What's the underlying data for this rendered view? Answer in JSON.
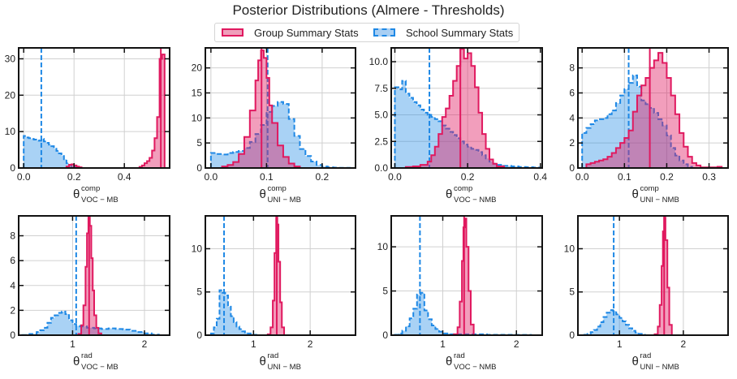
{
  "title": "Posterior Distributions (Almere - Thresholds)",
  "legend": {
    "placement": "top-center",
    "items": [
      {
        "label": "Group Summary Stats",
        "style": "solid",
        "color": "#e0195f",
        "fill": "#ef9fbb"
      },
      {
        "label": "School Summary Stats",
        "style": "dashed",
        "color": "#1e88e5",
        "fill": "#a9cff3"
      }
    ]
  },
  "colors": {
    "group_line": "#e0195f",
    "group_fill": "#e0195f",
    "school_line": "#1e88e5",
    "school_fill": "#1e88e5",
    "grid": "#d0d0d0",
    "frame": "#111111"
  },
  "chart_data": [
    {
      "type": "area",
      "panel": "top-1",
      "xlabel_symbol": "θ",
      "xlabel_sup": "comp",
      "xlabel_sub": "VOC − MB",
      "xlim": [
        -0.02,
        0.58
      ],
      "ylim": [
        0,
        33
      ],
      "xticks": [
        "0.0",
        "0.2",
        "0.4"
      ],
      "xtick_values": [
        0,
        0.2,
        0.4
      ],
      "yticks": [
        "0",
        "10",
        "20",
        "30"
      ],
      "ytick_values": [
        0,
        10,
        20,
        30
      ],
      "grid": true,
      "series": [
        {
          "name": "School Summary Stats",
          "marker_line": 0.07,
          "x": [
            0,
            0.01,
            0.02,
            0.03,
            0.04,
            0.05,
            0.06,
            0.07,
            0.08,
            0.09,
            0.1,
            0.11,
            0.12,
            0.13,
            0.14,
            0.15,
            0.16,
            0.17,
            0.18,
            0.19,
            0.2,
            0.21,
            0.22,
            0.23
          ],
          "y": [
            8.8,
            8.4,
            8.2,
            8.0,
            7.8,
            7.6,
            7.5,
            8.0,
            7.3,
            6.9,
            6.4,
            6.0,
            5.3,
            4.7,
            4.0,
            3.3,
            2.4,
            1.3,
            0.8,
            0.5,
            0.3,
            0.1,
            0.05,
            0
          ]
        },
        {
          "name": "Group Summary Stats",
          "marker_line": 0.545,
          "x": [
            0.17,
            0.18,
            0.19,
            0.2,
            0.21,
            0.22,
            0.23,
            0.46,
            0.47,
            0.48,
            0.49,
            0.5,
            0.51,
            0.52,
            0.53,
            0.54,
            0.55,
            0.56
          ],
          "y": [
            0.4,
            0.9,
            1.0,
            0.7,
            0.4,
            0.2,
            0,
            0.3,
            0.7,
            1.3,
            1.9,
            2.8,
            4.8,
            8.2,
            14.0,
            30.0,
            31.2,
            0
          ]
        }
      ]
    },
    {
      "type": "area",
      "panel": "top-2",
      "xlabel_symbol": "θ",
      "xlabel_sup": "comp",
      "xlabel_sub": "UNI − MB",
      "xlim": [
        -0.01,
        0.26
      ],
      "ylim": [
        0,
        24
      ],
      "xticks": [
        "0.0",
        "0.1",
        "0.2"
      ],
      "xtick_values": [
        0,
        0.1,
        0.2
      ],
      "yticks": [
        "0",
        "5",
        "10",
        "15",
        "20"
      ],
      "ytick_values": [
        0,
        5,
        10,
        15,
        20
      ],
      "grid": true,
      "series": [
        {
          "name": "School Summary Stats",
          "marker_line": 0.102,
          "x": [
            0,
            0.01,
            0.02,
            0.03,
            0.04,
            0.05,
            0.06,
            0.07,
            0.08,
            0.09,
            0.1,
            0.11,
            0.12,
            0.13,
            0.14,
            0.15,
            0.16,
            0.17,
            0.18,
            0.19,
            0.2,
            0.21,
            0.22,
            0.23,
            0.24,
            0.25
          ],
          "y": [
            3.0,
            2.8,
            2.7,
            3.0,
            3.2,
            3.4,
            4.0,
            5.2,
            6.8,
            8.6,
            11.2,
            12.4,
            13.2,
            12.8,
            9.8,
            6.4,
            3.8,
            2.4,
            1.3,
            0.6,
            0.3,
            0.15,
            0.08,
            0.05,
            0.05,
            0
          ]
        },
        {
          "name": "Group Summary Stats",
          "marker_line": 0.091,
          "x": [
            0.02,
            0.03,
            0.04,
            0.05,
            0.06,
            0.07,
            0.08,
            0.085,
            0.09,
            0.095,
            0.1,
            0.105,
            0.11,
            0.12,
            0.13,
            0.14,
            0.15,
            0.16
          ],
          "y": [
            0.3,
            0.6,
            1.2,
            2.8,
            6.2,
            11.5,
            17.5,
            21.5,
            23.5,
            22.0,
            18.0,
            12.5,
            9.0,
            4.5,
            2.2,
            0.9,
            0.3,
            0
          ]
        }
      ]
    },
    {
      "type": "area",
      "panel": "top-3",
      "xlabel_symbol": "θ",
      "xlabel_sup": "comp",
      "xlabel_sub": "VOC − NMB",
      "xlim": [
        -0.01,
        0.405
      ],
      "ylim": [
        0,
        11.3
      ],
      "xticks": [
        "0.0",
        "0.2",
        "0.4"
      ],
      "xtick_values": [
        0,
        0.2,
        0.4
      ],
      "yticks": [
        "0.0",
        "2.5",
        "5.0",
        "7.5",
        "10.0"
      ],
      "ytick_values": [
        0,
        2.5,
        5,
        7.5,
        10
      ],
      "grid": true,
      "series": [
        {
          "name": "School Summary Stats",
          "marker_line": 0.095,
          "x": [
            0,
            0.01,
            0.02,
            0.03,
            0.04,
            0.05,
            0.06,
            0.07,
            0.08,
            0.09,
            0.1,
            0.11,
            0.12,
            0.13,
            0.14,
            0.15,
            0.16,
            0.17,
            0.18,
            0.19,
            0.2,
            0.21,
            0.22,
            0.23,
            0.24,
            0.25,
            0.26,
            0.27,
            0.28,
            0.3,
            0.32,
            0.34,
            0.36,
            0.38,
            0.4
          ],
          "y": [
            7.6,
            7.4,
            8.2,
            7.0,
            6.6,
            6.2,
            5.9,
            5.5,
            5.2,
            5.0,
            4.8,
            4.6,
            4.4,
            4.0,
            3.7,
            3.4,
            3.1,
            2.8,
            2.5,
            2.2,
            2.0,
            1.8,
            1.7,
            1.5,
            1.2,
            0.9,
            0.6,
            0.4,
            0.3,
            0.2,
            0.15,
            0.1,
            0.08,
            0.05,
            0
          ]
        },
        {
          "name": "Group Summary Stats",
          "marker_line": 0.18,
          "x": [
            0.03,
            0.05,
            0.07,
            0.09,
            0.1,
            0.11,
            0.12,
            0.13,
            0.14,
            0.15,
            0.16,
            0.17,
            0.18,
            0.19,
            0.2,
            0.21,
            0.22,
            0.23,
            0.24,
            0.25,
            0.26,
            0.27,
            0.28,
            0.3
          ],
          "y": [
            0.1,
            0.15,
            0.3,
            0.6,
            1.2,
            2.0,
            3.2,
            4.8,
            5.6,
            6.8,
            8.2,
            9.6,
            11.2,
            10.3,
            10.8,
            9.6,
            7.6,
            5.2,
            3.2,
            1.8,
            0.8,
            0.4,
            0.15,
            0
          ]
        }
      ]
    },
    {
      "type": "area",
      "panel": "top-4",
      "xlabel_symbol": "θ",
      "xlabel_sup": "comp",
      "xlabel_sub": "UNI − NMB",
      "xlim": [
        -0.01,
        0.345
      ],
      "ylim": [
        0,
        9.6
      ],
      "xticks": [
        "0.0",
        "0.1",
        "0.2",
        "0.3"
      ],
      "xtick_values": [
        0,
        0.1,
        0.2,
        0.3
      ],
      "yticks": [
        "0",
        "2",
        "4",
        "6",
        "8"
      ],
      "ytick_values": [
        0,
        2,
        4,
        6,
        8
      ],
      "grid": true,
      "series": [
        {
          "name": "School Summary Stats",
          "marker_line": 0.11,
          "x": [
            0,
            0.01,
            0.02,
            0.03,
            0.04,
            0.05,
            0.06,
            0.07,
            0.08,
            0.09,
            0.1,
            0.11,
            0.12,
            0.13,
            0.14,
            0.15,
            0.16,
            0.17,
            0.18,
            0.19,
            0.2,
            0.21,
            0.22,
            0.23,
            0.24,
            0.25,
            0.26
          ],
          "y": [
            2.8,
            3.2,
            3.5,
            3.8,
            3.9,
            4.0,
            4.3,
            4.6,
            5.2,
            5.8,
            6.3,
            6.8,
            7.4,
            6.5,
            5.4,
            5.1,
            4.8,
            4.4,
            3.9,
            3.4,
            2.6,
            1.6,
            1.0,
            0.6,
            0.3,
            0.1,
            0
          ]
        },
        {
          "name": "Group Summary Stats",
          "marker_line": 0.16,
          "x": [
            0.01,
            0.02,
            0.03,
            0.04,
            0.05,
            0.06,
            0.07,
            0.08,
            0.09,
            0.1,
            0.11,
            0.12,
            0.13,
            0.14,
            0.15,
            0.16,
            0.17,
            0.18,
            0.19,
            0.2,
            0.21,
            0.22,
            0.23,
            0.24,
            0.25,
            0.26,
            0.27,
            0.28,
            0.32,
            0.33
          ],
          "y": [
            0.3,
            0.4,
            0.5,
            0.6,
            0.7,
            0.9,
            1.2,
            1.6,
            2.0,
            2.4,
            3.0,
            4.5,
            5.8,
            6.6,
            7.2,
            8.0,
            8.6,
            9.2,
            8.4,
            7.2,
            5.8,
            4.3,
            2.8,
            1.7,
            0.9,
            0.4,
            0.2,
            0.05,
            0.1,
            0
          ]
        }
      ]
    },
    {
      "type": "area",
      "panel": "bottom-1",
      "xlabel_symbol": "θ",
      "xlabel_sup": "rad",
      "xlabel_sub": "VOC − MB",
      "xlim": [
        0.25,
        2.35
      ],
      "ylim": [
        0,
        9.6
      ],
      "xticks": [
        "1",
        "2"
      ],
      "xtick_values": [
        1,
        2
      ],
      "yticks": [
        "0",
        "2",
        "4",
        "6",
        "8"
      ],
      "ytick_values": [
        0,
        2,
        4,
        6,
        8
      ],
      "grid": true,
      "series": [
        {
          "name": "School Summary Stats",
          "marker_line": 1.05,
          "x": [
            0.3,
            0.4,
            0.5,
            0.55,
            0.6,
            0.65,
            0.7,
            0.75,
            0.8,
            0.85,
            0.9,
            0.95,
            1.0,
            1.05,
            1.1,
            1.2,
            1.3,
            1.4,
            1.5,
            1.6,
            1.7,
            1.8,
            1.9,
            2.0,
            2.1,
            2.2
          ],
          "y": [
            0.02,
            0.1,
            0.25,
            0.4,
            0.6,
            1.0,
            1.4,
            1.6,
            1.8,
            1.9,
            1.7,
            1.2,
            0.9,
            0.75,
            0.7,
            0.6,
            0.55,
            0.5,
            0.55,
            0.5,
            0.45,
            0.35,
            0.25,
            0.15,
            0.05,
            0
          ]
        },
        {
          "name": "Group Summary Stats",
          "marker_line": 1.23,
          "x": [
            1.08,
            1.12,
            1.15,
            1.18,
            1.2,
            1.22,
            1.24,
            1.26,
            1.28,
            1.3,
            1.33,
            1.36,
            1.4
          ],
          "y": [
            0.1,
            0.8,
            2.4,
            5.5,
            8.2,
            9.5,
            8.8,
            6.2,
            3.6,
            1.6,
            0.6,
            0.15,
            0
          ]
        }
      ]
    },
    {
      "type": "area",
      "panel": "bottom-2",
      "xlabel_symbol": "θ",
      "xlabel_sup": "rad",
      "xlabel_sub": "UNI − MB",
      "xlim": [
        0.15,
        2.8
      ],
      "ylim": [
        0,
        13.8
      ],
      "xticks": [
        "1",
        "2"
      ],
      "xtick_values": [
        1,
        2
      ],
      "yticks": [
        "0",
        "5",
        "10"
      ],
      "ytick_values": [
        0,
        5,
        10
      ],
      "grid": true,
      "series": [
        {
          "name": "School Summary Stats",
          "marker_line": 0.48,
          "x": [
            0.25,
            0.3,
            0.35,
            0.4,
            0.45,
            0.5,
            0.55,
            0.6,
            0.65,
            0.7,
            0.75,
            0.8,
            0.85,
            0.9,
            0.95,
            1.0,
            1.05
          ],
          "y": [
            0.2,
            0.9,
            1.9,
            5.2,
            4.9,
            4.6,
            3.3,
            2.2,
            1.5,
            1.0,
            0.7,
            0.45,
            0.3,
            0.2,
            0.15,
            0.05,
            0
          ]
        },
        {
          "name": "Group Summary Stats",
          "marker_line": 1.41,
          "x": [
            1.25,
            1.3,
            1.34,
            1.37,
            1.4,
            1.42,
            1.44,
            1.47,
            1.5,
            1.54
          ],
          "y": [
            0.1,
            0.9,
            4.0,
            9.5,
            13.6,
            12.8,
            8.5,
            3.8,
            0.9,
            0
          ]
        }
      ]
    },
    {
      "type": "area",
      "panel": "bottom-3",
      "xlabel_symbol": "θ",
      "xlabel_sup": "rad",
      "xlabel_sub": "VOC − NMB",
      "xlim": [
        0.3,
        2.35
      ],
      "ylim": [
        0,
        13.5
      ],
      "xticks": [
        "1",
        "2"
      ],
      "xtick_values": [
        1,
        2
      ],
      "yticks": [
        "0",
        "5",
        "10"
      ],
      "ytick_values": [
        0,
        5,
        10
      ],
      "grid": true,
      "series": [
        {
          "name": "School Summary Stats",
          "marker_line": 0.69,
          "x": [
            0.35,
            0.4,
            0.45,
            0.5,
            0.55,
            0.6,
            0.65,
            0.7,
            0.75,
            0.8,
            0.85,
            0.9,
            0.95,
            1.0,
            1.1,
            1.2,
            1.4,
            1.6,
            1.8,
            2.0,
            2.2
          ],
          "y": [
            0.05,
            0.2,
            0.5,
            1.0,
            1.9,
            3.0,
            4.6,
            4.8,
            2.8,
            1.8,
            1.1,
            0.7,
            0.4,
            0.2,
            0.1,
            0.1,
            0.1,
            0.05,
            0.05,
            0.03,
            0
          ]
        },
        {
          "name": "Group Summary Stats",
          "marker_line": 1.29,
          "x": [
            1.15,
            1.2,
            1.23,
            1.26,
            1.28,
            1.3,
            1.32,
            1.35,
            1.38,
            1.42
          ],
          "y": [
            0.1,
            0.9,
            3.8,
            8.4,
            12.2,
            13.2,
            10.0,
            5.0,
            1.2,
            0
          ]
        }
      ]
    },
    {
      "type": "area",
      "panel": "bottom-4",
      "xlabel_symbol": "θ",
      "xlabel_sup": "rad",
      "xlabel_sub": "UNI − NMB",
      "xlim": [
        0.35,
        2.7
      ],
      "ylim": [
        0,
        13.8
      ],
      "xticks": [
        "1",
        "2"
      ],
      "xtick_values": [
        1,
        2
      ],
      "yticks": [
        "0",
        "5",
        "10"
      ],
      "ytick_values": [
        0,
        5,
        10
      ],
      "grid": true,
      "series": [
        {
          "name": "School Summary Stats",
          "marker_line": 0.91,
          "x": [
            0.45,
            0.5,
            0.55,
            0.6,
            0.65,
            0.7,
            0.75,
            0.8,
            0.85,
            0.9,
            0.95,
            1.0,
            1.05,
            1.1,
            1.15,
            1.2,
            1.25,
            1.3,
            1.35,
            1.4
          ],
          "y": [
            0.05,
            0.15,
            0.35,
            0.6,
            1.0,
            1.5,
            2.1,
            2.6,
            2.9,
            2.8,
            2.4,
            2.0,
            1.6,
            1.2,
            0.8,
            0.5,
            0.3,
            0.15,
            0.05,
            0
          ]
        },
        {
          "name": "Group Summary Stats",
          "marker_line": 1.7,
          "x": [
            1.55,
            1.6,
            1.63,
            1.66,
            1.68,
            1.7,
            1.72,
            1.75,
            1.78,
            1.82
          ],
          "y": [
            0.1,
            1.0,
            3.5,
            8.0,
            12.0,
            13.6,
            11.0,
            5.5,
            1.2,
            0
          ]
        }
      ]
    }
  ]
}
